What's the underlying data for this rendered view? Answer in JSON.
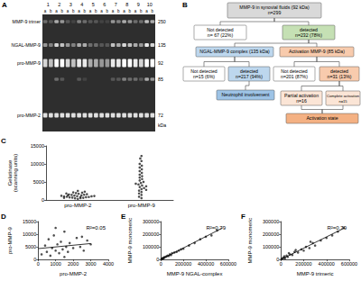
{
  "gel": {
    "title": "A",
    "lanes": [
      "1",
      "2",
      "3",
      "4",
      "5",
      "6",
      "7",
      "8",
      "9",
      "10"
    ],
    "sublanes": [
      "a",
      "b"
    ],
    "unit": "kDa",
    "bands": [
      {
        "name": "MMP-9 trimer",
        "kda": 250,
        "intensity": [
          0.3,
          0.2,
          0.6,
          0.5,
          0.2,
          0.1,
          0.4,
          0.3,
          0.2,
          0.2,
          0.1,
          0.1,
          0.5,
          0.4,
          0.6,
          0.5,
          0.3,
          0.3,
          0.7,
          0.6
        ]
      },
      {
        "name": "NGAL-MMP-9",
        "kda": 135,
        "intensity": [
          0.5,
          0.4,
          0.8,
          0.7,
          0.5,
          0.4,
          0.6,
          0.6,
          0.3,
          0.3,
          0.2,
          0.2,
          0.7,
          0.6,
          0.8,
          0.7,
          0.6,
          0.5,
          0.9,
          0.8
        ]
      },
      {
        "name": "pro-MMP-9",
        "kda": 92,
        "intensity": [
          0.8,
          0.7,
          1,
          1,
          0.8,
          0.7,
          0.9,
          0.9,
          0.6,
          0.6,
          0.5,
          0.5,
          0.9,
          0.9,
          1,
          1,
          0.9,
          0.8,
          1,
          1
        ]
      },
      {
        "name": null,
        "kda": 85,
        "intensity": [
          0,
          0,
          0.3,
          0.2,
          0,
          0,
          0.2,
          0.1,
          0,
          0,
          0,
          0,
          0.2,
          0.2,
          0.4,
          0.3,
          0.3,
          0.2,
          0.6,
          0.5
        ]
      },
      {
        "name": "pro-MMP-2",
        "kda": 72,
        "intensity": [
          0.85,
          0.85,
          0.85,
          0.85,
          0.85,
          0.85,
          0.85,
          0.85,
          0.85,
          0.85,
          0.85,
          0.85,
          0.85,
          0.85,
          0.85,
          0.85,
          0.85,
          0.85,
          0.85,
          0.85
        ]
      }
    ]
  },
  "flowchart": {
    "title": "B",
    "root": {
      "lines": [
        "MMP-9 in synovial fluids (92 kDa)",
        "n=299"
      ],
      "color": "#d9d9d9",
      "children": [
        {
          "lines": [
            "Not detected",
            "n= 67 (22%)"
          ],
          "color": "#ffffff"
        },
        {
          "lines": [
            "detected",
            "n=232 (78%)"
          ],
          "color": "#c5e0b4",
          "children": [
            {
              "lines": [
                "NGAL-MMP-9 complex (135 kDa)"
              ],
              "color": "#bdd7ee",
              "children": [
                {
                  "lines": [
                    "Not detected",
                    "n=15 (6%)"
                  ],
                  "color": "#ffffff"
                },
                {
                  "lines": [
                    "detected",
                    "n=217 (94%)"
                  ],
                  "color": "#bdd7ee",
                  "children": [
                    {
                      "lines": [
                        "Neutrophil involvement"
                      ],
                      "color": "#9dc3e6"
                    }
                  ]
                }
              ]
            },
            {
              "lines": [
                "Activation MMP-9 (85 kDa)"
              ],
              "color": "#f8cbad",
              "children": [
                {
                  "lines": [
                    "Not detected",
                    "n=201 (87%)"
                  ],
                  "color": "#ffffff"
                },
                {
                  "lines": [
                    "detected",
                    "n=31 (13%)"
                  ],
                  "color": "#f8cbad",
                  "children": [
                    {
                      "lines": [
                        "Partial activation",
                        "n=16"
                      ],
                      "color": "#fbe5d6"
                    },
                    {
                      "lines": [
                        "Complete activation",
                        "n=15"
                      ],
                      "color": "#fbe5d6"
                    }
                  ],
                  "group": {
                    "lines": [
                      "Activation state"
                    ],
                    "color": "#f4b183"
                  }
                }
              ]
            }
          ]
        }
      ]
    }
  },
  "chart_data": [
    {
      "type": "scatter",
      "title": "C",
      "ylabel": "Gelatinase\n(scanning units)",
      "categories": [
        "pro-MMP-2",
        "pro-MMP-9"
      ],
      "values": [
        [
          300,
          450,
          520,
          600,
          650,
          700,
          780,
          820,
          900,
          950,
          1000,
          1050,
          1100,
          1150,
          1200,
          1250,
          1300,
          1400,
          1450,
          1500,
          1600,
          1700,
          1800,
          1900,
          2000,
          2100,
          2300,
          2500,
          800,
          600
        ],
        [
          500,
          900,
          1400,
          1800,
          2200,
          2600,
          3000,
          3300,
          3600,
          4000,
          4300,
          4700,
          5000,
          5400,
          5800,
          6200,
          6600,
          7000,
          7500,
          8000,
          8500,
          9000,
          9500,
          10000,
          10800,
          11500,
          12200,
          3800,
          2800,
          4500
        ]
      ],
      "ylim": [
        0,
        15000
      ],
      "yticks": [
        0,
        5000,
        10000,
        15000
      ],
      "color": "#222222",
      "marker": "circle",
      "grid": false
    },
    {
      "type": "scatter",
      "title": "D",
      "xlabel": "pro-MMP-2",
      "ylabel": "pro-MMP-9",
      "annotation": "R²=0.05",
      "x": [
        200,
        400,
        500,
        600,
        700,
        800,
        900,
        1000,
        1100,
        1200,
        1300,
        1400,
        1500,
        1600,
        1700,
        1800,
        2000,
        2200,
        2400,
        2600,
        2800,
        3000,
        1000,
        1500,
        2500
      ],
      "values": [
        2000,
        5500,
        3000,
        8000,
        1500,
        4500,
        9500,
        3500,
        6000,
        2500,
        7000,
        4000,
        11000,
        5000,
        3000,
        6500,
        4500,
        8500,
        5000,
        3500,
        7500,
        6000,
        12500,
        1000,
        9000
      ],
      "fit": [
        [
          0,
          4300
        ],
        [
          3000,
          6300
        ]
      ],
      "xlim": [
        0,
        4000
      ],
      "xticks": [
        0,
        1000,
        2000,
        3000,
        4000
      ],
      "ylim": [
        0,
        15000
      ],
      "yticks": [
        0,
        5000,
        10000,
        15000
      ],
      "color": "#222222",
      "marker": "circle",
      "grid": false
    },
    {
      "type": "scatter",
      "title": "E",
      "xlabel": "MMP-9 NGAL-complex",
      "ylabel": "MMP-9 monomeric",
      "annotation": "R²=0.79",
      "x": [
        5000,
        10000,
        15000,
        20000,
        25000,
        30000,
        40000,
        50000,
        60000,
        70000,
        80000,
        90000,
        100000,
        120000,
        140000,
        160000,
        180000,
        200000,
        250000,
        300000,
        350000,
        400000,
        450000,
        500000,
        8000
      ],
      "values": [
        3000,
        8000,
        6000,
        12000,
        10000,
        18000,
        20000,
        25000,
        30000,
        28000,
        40000,
        35000,
        50000,
        55000,
        60000,
        70000,
        80000,
        85000,
        110000,
        130000,
        160000,
        180000,
        190000,
        230000,
        2000
      ],
      "fit": [
        [
          0,
          0
        ],
        [
          550000,
          250000
        ]
      ],
      "xlim": [
        0,
        600000
      ],
      "xticks": [
        0,
        200000,
        400000,
        600000
      ],
      "ylim": [
        0,
        300000
      ],
      "yticks": [
        0,
        100000,
        200000,
        300000
      ],
      "color": "#222222",
      "marker": "circle",
      "grid": false
    },
    {
      "type": "scatter",
      "title": "F",
      "xlabel": "MMP-9 trimeric",
      "ylabel": "MMP-9 monomeric",
      "annotation": "R²=0.79",
      "x": [
        5000,
        15000,
        25000,
        35000,
        50000,
        60000,
        80000,
        100000,
        120000,
        150000,
        180000,
        200000,
        220000,
        250000,
        280000,
        300000,
        350000,
        400000,
        450000,
        500000,
        550000,
        30000,
        70000,
        130000,
        260000
      ],
      "values": [
        4000,
        10000,
        15000,
        8000,
        30000,
        20000,
        40000,
        35000,
        60000,
        55000,
        80000,
        70000,
        100000,
        90000,
        130000,
        110000,
        150000,
        170000,
        190000,
        220000,
        250000,
        25000,
        50000,
        75000,
        140000
      ],
      "fit": [
        [
          0,
          0
        ],
        [
          560000,
          250000
        ]
      ],
      "xlim": [
        0,
        600000
      ],
      "xticks": [
        0,
        200000,
        400000,
        600000
      ],
      "ylim": [
        0,
        300000
      ],
      "yticks": [
        0,
        100000,
        200000,
        300000
      ],
      "color": "#222222",
      "marker": "circle",
      "grid": false
    }
  ]
}
